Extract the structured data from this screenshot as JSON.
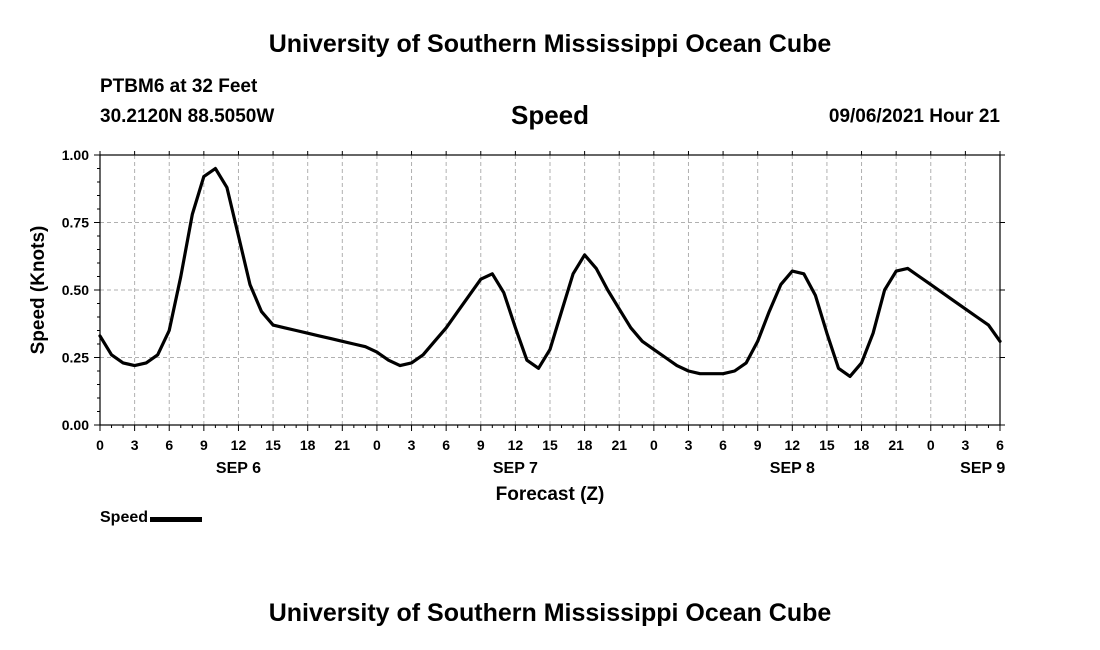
{
  "header": {
    "title": "University of Southern Mississippi Ocean Cube",
    "station": "PTBM6 at 32 Feet",
    "coordinates": "30.2120N  88.5050W",
    "variable": "Speed",
    "datetime": "09/06/2021 Hour 21"
  },
  "footer": {
    "title": "University of Southern Mississippi Ocean Cube"
  },
  "chart_data": {
    "type": "line",
    "ylabel": "Speed (Knots)",
    "xlabel": "Forecast (Z)",
    "ylim": [
      0,
      1
    ],
    "xlim": [
      0,
      78
    ],
    "y_ticks": [
      "0.00",
      "0.25",
      "0.50",
      "0.75",
      "1.00"
    ],
    "x_tick_labels": [
      "0",
      "3",
      "6",
      "9",
      "12",
      "15",
      "18",
      "21",
      "0",
      "3",
      "6",
      "9",
      "12",
      "15",
      "18",
      "21",
      "0",
      "3",
      "6",
      "9",
      "12",
      "15",
      "18",
      "21",
      "0",
      "3",
      "6"
    ],
    "date_labels": [
      {
        "label": "SEP 6",
        "hour": 12
      },
      {
        "label": "SEP 7",
        "hour": 36
      },
      {
        "label": "SEP 8",
        "hour": 60
      },
      {
        "label": "SEP 9",
        "hour": 76.5
      }
    ],
    "grid": true,
    "legend": "bottom-left",
    "series": [
      {
        "name": "Speed",
        "color": "#000000",
        "x": [
          0,
          1,
          2,
          3,
          4,
          5,
          6,
          7,
          8,
          9,
          10,
          11,
          12,
          13,
          14,
          15,
          16,
          17,
          18,
          19,
          20,
          21,
          22,
          23,
          24,
          25,
          26,
          27,
          28,
          29,
          30,
          31,
          32,
          33,
          34,
          35,
          36,
          37,
          38,
          39,
          40,
          41,
          42,
          43,
          44,
          45,
          46,
          47,
          48,
          49,
          50,
          51,
          52,
          53,
          54,
          55,
          56,
          57,
          58,
          59,
          60,
          61,
          62,
          63,
          64,
          65,
          66,
          67,
          68,
          69,
          70,
          71,
          72,
          73,
          74,
          75,
          76,
          77,
          78
        ],
        "values": [
          0.33,
          0.26,
          0.23,
          0.22,
          0.23,
          0.26,
          0.35,
          0.55,
          0.78,
          0.92,
          0.95,
          0.88,
          0.7,
          0.52,
          0.42,
          0.37,
          0.36,
          0.35,
          0.34,
          0.33,
          0.32,
          0.31,
          0.3,
          0.29,
          0.27,
          0.24,
          0.22,
          0.23,
          0.26,
          0.31,
          0.36,
          0.42,
          0.48,
          0.54,
          0.56,
          0.49,
          0.36,
          0.24,
          0.21,
          0.28,
          0.42,
          0.56,
          0.63,
          0.58,
          0.5,
          0.43,
          0.36,
          0.31,
          0.28,
          0.25,
          0.22,
          0.2,
          0.19,
          0.19,
          0.19,
          0.2,
          0.23,
          0.31,
          0.42,
          0.52,
          0.57,
          0.56,
          0.48,
          0.34,
          0.21,
          0.18,
          0.23,
          0.34,
          0.5,
          0.57,
          0.58,
          0.55,
          0.52,
          0.49,
          0.46,
          0.43,
          0.4,
          0.37,
          0.31
        ]
      }
    ]
  }
}
